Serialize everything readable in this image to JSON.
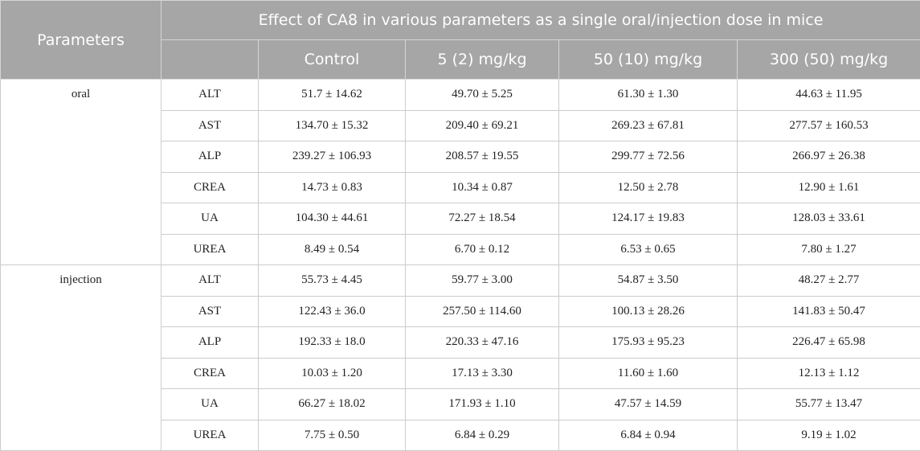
{
  "header": {
    "parameters_label": "Parameters",
    "title": "Effect of CA8 in various parameters as a single oral/injection dose in mice",
    "columns": [
      "Control",
      "5 (2) mg/kg",
      "50 (10) mg/kg",
      "300 (50) mg/kg"
    ]
  },
  "groups": [
    {
      "label": "oral",
      "rows": [
        {
          "param": "ALT",
          "values": [
            "51.7 ± 14.62",
            "49.70 ± 5.25",
            "61.30 ± 1.30",
            "44.63 ± 11.95"
          ]
        },
        {
          "param": "AST",
          "values": [
            "134.70 ± 15.32",
            "209.40 ± 69.21",
            "269.23 ± 67.81",
            "277.57 ± 160.53"
          ]
        },
        {
          "param": "ALP",
          "values": [
            "239.27 ± 106.93",
            "208.57 ± 19.55",
            "299.77 ± 72.56",
            "266.97 ± 26.38"
          ]
        },
        {
          "param": "CREA",
          "values": [
            "14.73 ± 0.83",
            "10.34 ± 0.87",
            "12.50 ± 2.78",
            "12.90 ± 1.61"
          ]
        },
        {
          "param": "UA",
          "values": [
            "104.30 ± 44.61",
            "72.27 ± 18.54",
            "124.17 ± 19.83",
            "128.03 ± 33.61"
          ]
        },
        {
          "param": "UREA",
          "values": [
            "8.49 ± 0.54",
            "6.70 ± 0.12",
            "6.53 ± 0.65",
            "7.80 ± 1.27"
          ]
        }
      ]
    },
    {
      "label": "injection",
      "rows": [
        {
          "param": "ALT",
          "values": [
            "55.73 ± 4.45",
            "59.77 ± 3.00",
            "54.87 ± 3.50",
            "48.27 ± 2.77"
          ]
        },
        {
          "param": "AST",
          "values": [
            "122.43 ± 36.0",
            "257.50 ± 114.60",
            "100.13 ± 28.26",
            "141.83 ± 50.47"
          ]
        },
        {
          "param": "ALP",
          "values": [
            "192.33 ± 18.0",
            "220.33 ± 47.16",
            "175.93 ± 95.23",
            "226.47 ± 65.98"
          ]
        },
        {
          "param": "CREA",
          "values": [
            "10.03 ± 1.20",
            "17.13 ± 3.30",
            "11.60 ± 1.60",
            "12.13 ± 1.12"
          ]
        },
        {
          "param": "UA",
          "values": [
            "66.27 ± 18.02",
            "171.93 ± 1.10",
            "47.57 ± 14.59",
            "55.77 ± 13.47"
          ]
        },
        {
          "param": "UREA",
          "values": [
            "7.75 ± 0.50",
            "6.84 ± 0.29",
            "6.84 ± 0.94",
            "9.19 ± 1.02"
          ]
        }
      ]
    }
  ]
}
